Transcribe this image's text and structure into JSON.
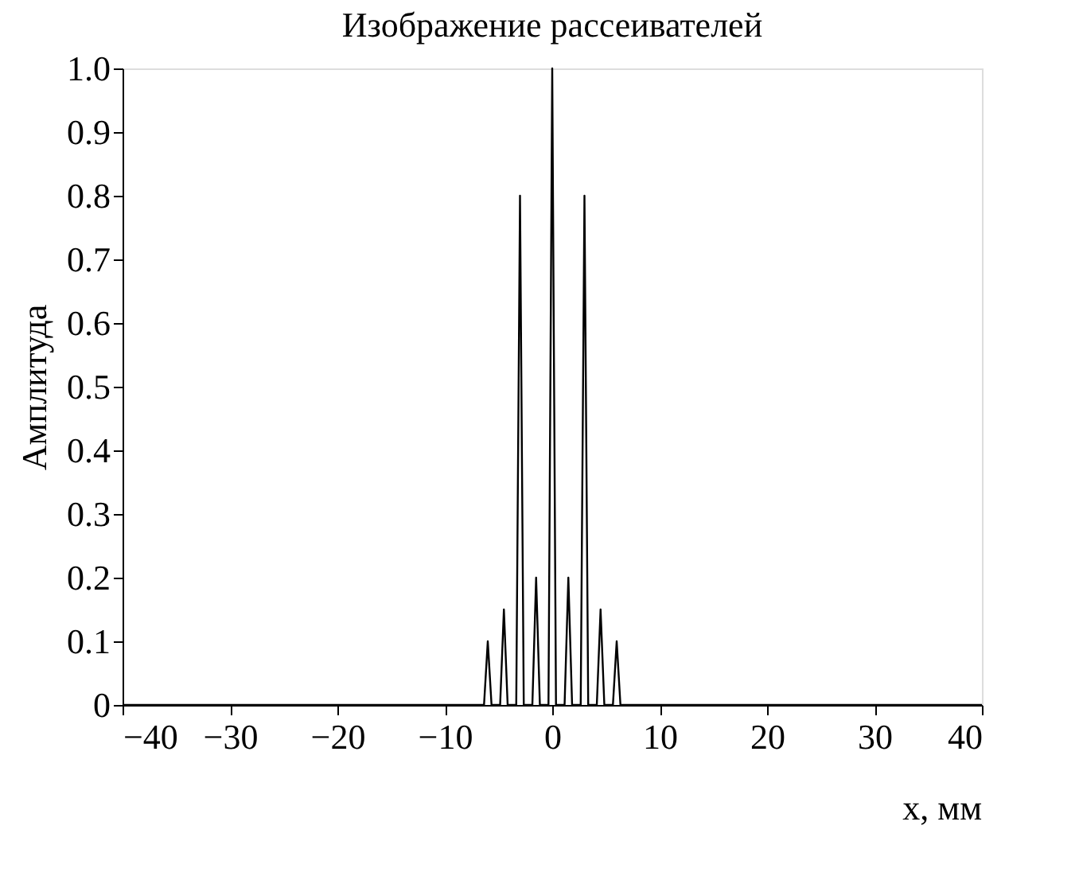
{
  "chart_data": {
    "type": "line",
    "title": "Изображение рассеивателей",
    "xlabel": "x, мм",
    "ylabel": "Амплитуда",
    "x": [
      -40,
      -6.35,
      -6,
      -5.65,
      -4.85,
      -4.5,
      -4.15,
      -3.35,
      -3,
      -2.65,
      -1.85,
      -1.5,
      -1.15,
      -0.35,
      0,
      0.35,
      1.15,
      1.5,
      1.85,
      2.65,
      3,
      3.35,
      4.15,
      4.5,
      4.85,
      5.65,
      6,
      6.35,
      40
    ],
    "series": [
      {
        "color": "#000000",
        "values": [
          0,
          0,
          0.1,
          0,
          0,
          0.15,
          0,
          0,
          0.8,
          0,
          0,
          0.2,
          0,
          0,
          1.0,
          0,
          0,
          0.2,
          0,
          0,
          0.8,
          0,
          0,
          0.15,
          0,
          0,
          0.1,
          0,
          0
        ]
      }
    ],
    "xlim": [
      -40,
      40
    ],
    "xticks": [
      {
        "value": -40,
        "label": "−40"
      },
      {
        "value": -30,
        "label": "−30"
      },
      {
        "value": -20,
        "label": "−20"
      },
      {
        "value": -10,
        "label": "−10"
      },
      0,
      10,
      20,
      30,
      40
    ],
    "ylim": [
      0,
      1.0
    ],
    "yticks": [
      0,
      0.1,
      0.2,
      0.3,
      0.4,
      0.5,
      0.6,
      0.7,
      0.8,
      0.9,
      {
        "value": 1.0,
        "label": "1.0"
      }
    ],
    "grid": false,
    "marker": "none",
    "line_style": "solid"
  }
}
